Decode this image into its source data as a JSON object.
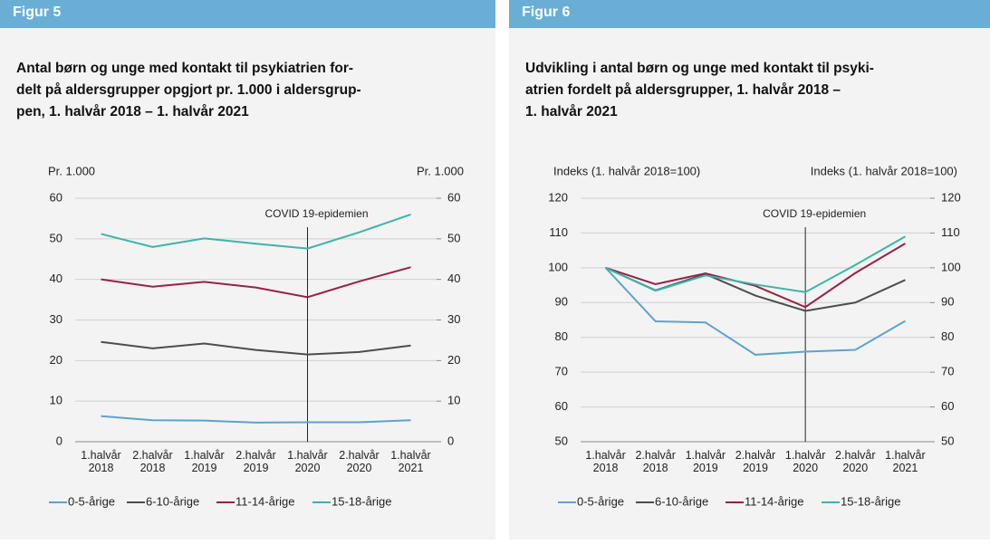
{
  "chart_data": [
    {
      "type": "line",
      "figure_label": "Figur 5",
      "title": "Antal børn og unge med kontakt til psykiatrien for-\ndelt på aldersgrupper opgjort pr. 1.000 i aldersgrup-\npen, 1. halvår 2018 – 1. halvår 2021",
      "y_label": "Pr. 1.000",
      "y2_label": "Pr. 1.000",
      "categories": [
        "1.halvår\n2018",
        "2.halvår\n2018",
        "1.halvår\n2019",
        "2.halvår\n2019",
        "1.halvår\n2020",
        "2.halvår\n2020",
        "1.halvår\n2021"
      ],
      "series": [
        {
          "name": "0-5-årige",
          "color": "#5ba3d0",
          "values": [
            6.3,
            5.3,
            5.2,
            4.7,
            4.8,
            4.8,
            5.3
          ]
        },
        {
          "name": "6-10-årige",
          "color": "#4d4d4d",
          "values": [
            24.6,
            23.0,
            24.2,
            22.6,
            21.5,
            22.1,
            23.7
          ]
        },
        {
          "name": "11-14-årige",
          "color": "#9b2045",
          "values": [
            40.0,
            38.2,
            39.4,
            38.0,
            35.6,
            39.5,
            43.0
          ]
        },
        {
          "name": "15-18-årige",
          "color": "#3bb5a8",
          "values": [
            51.2,
            48.0,
            50.1,
            48.8,
            47.6,
            51.6,
            56.0
          ]
        }
      ],
      "ylim": [
        0,
        60
      ],
      "yticks": [
        0,
        10,
        20,
        30,
        40,
        50,
        60
      ],
      "y2lim": [
        0,
        60
      ],
      "y2ticks": [
        0,
        10,
        20,
        30,
        40,
        50,
        60
      ],
      "annotation": {
        "text": "COVID 19-epidemien",
        "category": "1.halvår\n2020"
      }
    },
    {
      "type": "line",
      "figure_label": "Figur 6",
      "title": "Udvikling i antal børn og unge med kontakt til psyki-\natrien fordelt på aldersgrupper, 1. halvår 2018 –\n1. halvår 2021",
      "y_label": "Indeks (1. halvår 2018=100)",
      "y2_label": "Indeks (1. halvår 2018=100)",
      "categories": [
        "1.halvår\n2018",
        "2.halvår\n2018",
        "1.halvår\n2019",
        "2.halvår\n2019",
        "1.halvår\n2020",
        "2.halvår\n2020",
        "1.halvår\n2021"
      ],
      "series": [
        {
          "name": "0-5-årige",
          "color": "#5ba3d0",
          "values": [
            100,
            84.6,
            84.3,
            75.0,
            75.9,
            76.4,
            84.7
          ]
        },
        {
          "name": "6-10-årige",
          "color": "#4d4d4d",
          "values": [
            100,
            93.5,
            98.2,
            92.0,
            87.6,
            90.0,
            96.5
          ]
        },
        {
          "name": "11-14-årige",
          "color": "#9b2045",
          "values": [
            100,
            95.3,
            98.4,
            94.8,
            88.7,
            98.5,
            107.0
          ]
        },
        {
          "name": "15-18-årige",
          "color": "#3bb5a8",
          "values": [
            100,
            93.4,
            97.8,
            95.2,
            93.0,
            100.8,
            109.0
          ]
        }
      ],
      "ylim": [
        50,
        120
      ],
      "yticks": [
        50,
        60,
        70,
        80,
        90,
        100,
        110,
        120
      ],
      "y2lim": [
        50,
        120
      ],
      "y2ticks": [
        50,
        60,
        70,
        80,
        90,
        100,
        110,
        120
      ],
      "annotation": {
        "text": "COVID 19-epidemien",
        "category": "1.halvår\n2020"
      }
    }
  ]
}
